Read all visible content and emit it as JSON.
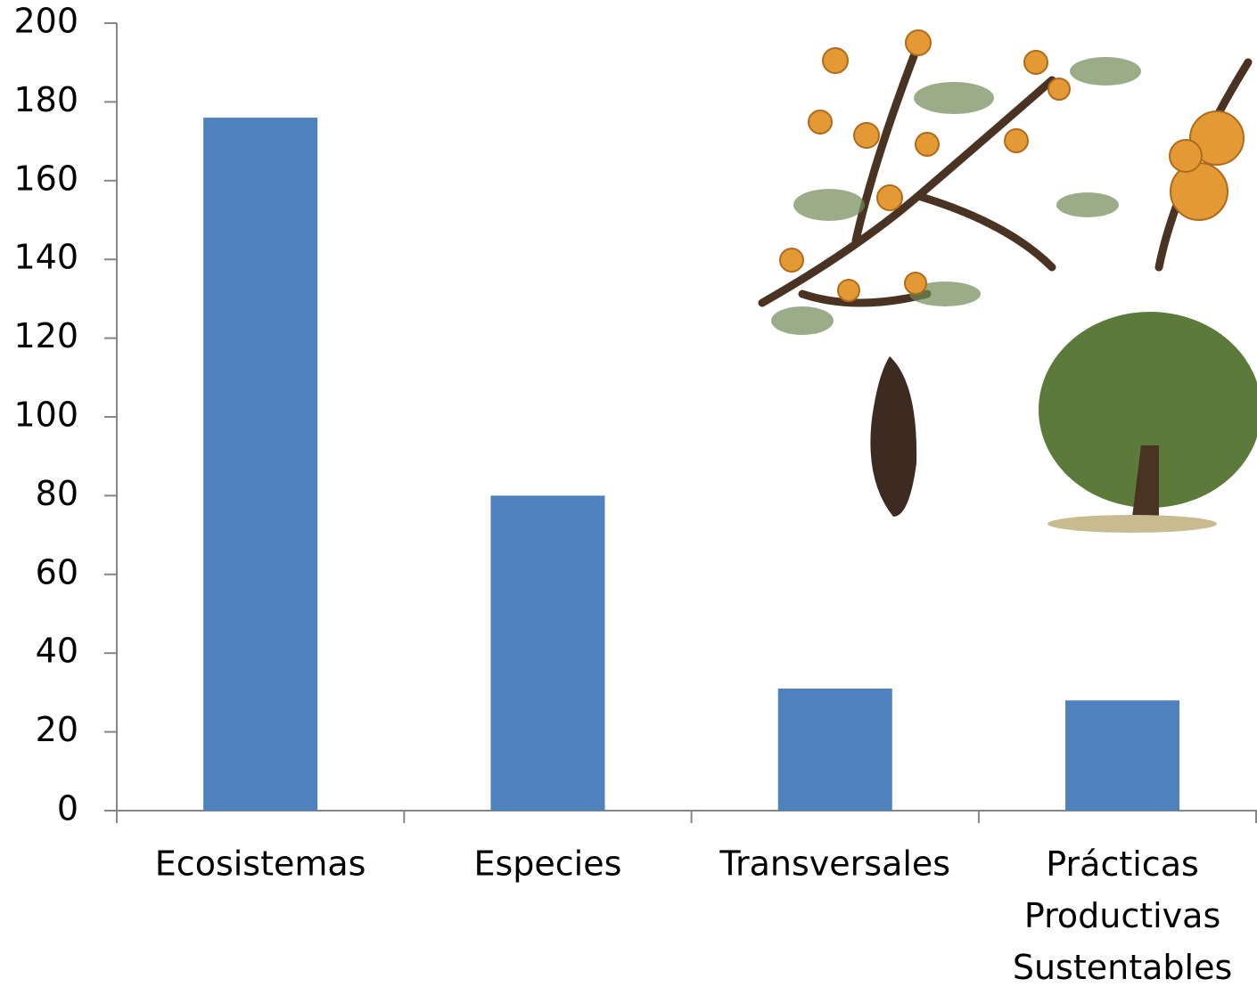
{
  "chart_data": {
    "type": "bar",
    "categories": [
      "Ecosistemas",
      "Especies",
      "Transversales",
      "Prácticas Productivas Sustentables"
    ],
    "values": [
      176,
      80,
      31,
      28
    ],
    "color": "#4f81bd",
    "ylim": [
      0,
      200
    ],
    "yticks": [
      0,
      20,
      40,
      60,
      80,
      100,
      120,
      140,
      160,
      180,
      200
    ],
    "grid": false
  }
}
